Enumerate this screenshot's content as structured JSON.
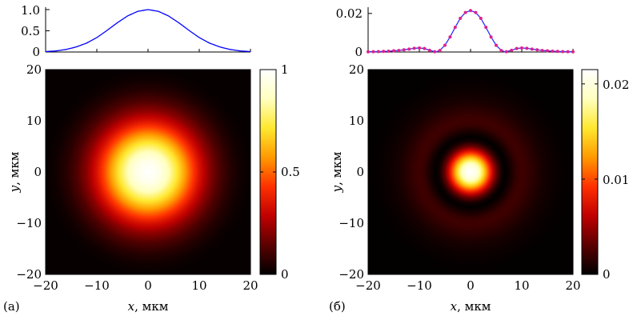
{
  "chart_data": [
    {
      "id": "a",
      "panel_label": "(a)",
      "type": "heatmap",
      "xlabel_var": "x",
      "xlabel_unit": ", мкм",
      "ylabel_var": "y",
      "ylabel_unit": ", мкм",
      "xlim": [
        -20,
        20
      ],
      "ylim": [
        -20,
        20
      ],
      "xticks": [
        "−20",
        "−10",
        "0",
        "10",
        "20"
      ],
      "yticks": [
        "−20",
        "−10",
        "0",
        "10",
        "20"
      ],
      "xtick_values": [
        -20,
        -10,
        0,
        10,
        20
      ],
      "ytick_values": [
        -20,
        -10,
        0,
        10,
        20
      ],
      "colorbar": {
        "min": 0,
        "max": 1,
        "ticks": [
          0,
          0.5,
          1
        ],
        "tick_labels": [
          "0",
          "0.5",
          "1"
        ]
      },
      "colormap": [
        "#000000",
        "#5a0000",
        "#c00000",
        "#ff3000",
        "#ff9a00",
        "#ffe830",
        "#ffffc0",
        "#ffffff"
      ],
      "intensity_profile": {
        "r": [
          0,
          2,
          4,
          6,
          8,
          10,
          12,
          14,
          16,
          18,
          20
        ],
        "value": [
          1.0,
          0.96,
          0.85,
          0.69,
          0.51,
          0.34,
          0.21,
          0.12,
          0.06,
          0.025,
          0.01
        ]
      },
      "cross_section": {
        "ylim": [
          0,
          1.0
        ],
        "yticks": [
          "0",
          "0.5",
          "1.0"
        ],
        "ytick_values": [
          0,
          0.5,
          1.0
        ],
        "line_color": "#0000ff",
        "markers": false
      }
    },
    {
      "id": "b",
      "panel_label": "(б)",
      "type": "heatmap",
      "xlabel_var": "x",
      "xlabel_unit": ", мкм",
      "ylabel_var": "y",
      "ylabel_unit": ", мкм",
      "xlim": [
        -20,
        20
      ],
      "ylim": [
        -20,
        20
      ],
      "xticks": [
        "−20",
        "−10",
        "0",
        "10",
        "20"
      ],
      "yticks": [
        "−20",
        "−10",
        "0",
        "10",
        "20"
      ],
      "xtick_values": [
        -20,
        -10,
        0,
        10,
        20
      ],
      "ytick_values": [
        -20,
        -10,
        0,
        10,
        20
      ],
      "colorbar": {
        "min": 0,
        "max": 0.0215,
        "ticks": [
          0,
          0.01,
          0.02
        ],
        "tick_labels": [
          "0",
          "0.01",
          "0.02"
        ]
      },
      "colormap": [
        "#000000",
        "#5a0000",
        "#c00000",
        "#ff3000",
        "#ff9a00",
        "#ffe830",
        "#ffffc0",
        "#ffffff"
      ],
      "intensity_profile": {
        "r": [
          0,
          1,
          2,
          3,
          4,
          5,
          6,
          6.8,
          8,
          9,
          10,
          11,
          12,
          14,
          16,
          18,
          20
        ],
        "value": [
          0.0215,
          0.0205,
          0.0175,
          0.0128,
          0.0078,
          0.0035,
          0.0008,
          0.0,
          0.0009,
          0.0018,
          0.0021,
          0.0019,
          0.0015,
          0.0008,
          0.0004,
          0.0002,
          0.0001
        ]
      },
      "cross_section": {
        "ylim": [
          0,
          0.022
        ],
        "yticks": [
          "0",
          "0.02"
        ],
        "ytick_values": [
          0,
          0.02
        ],
        "line_color": "#3030ff",
        "marker_color": "#e0208a",
        "markers": true
      }
    }
  ]
}
